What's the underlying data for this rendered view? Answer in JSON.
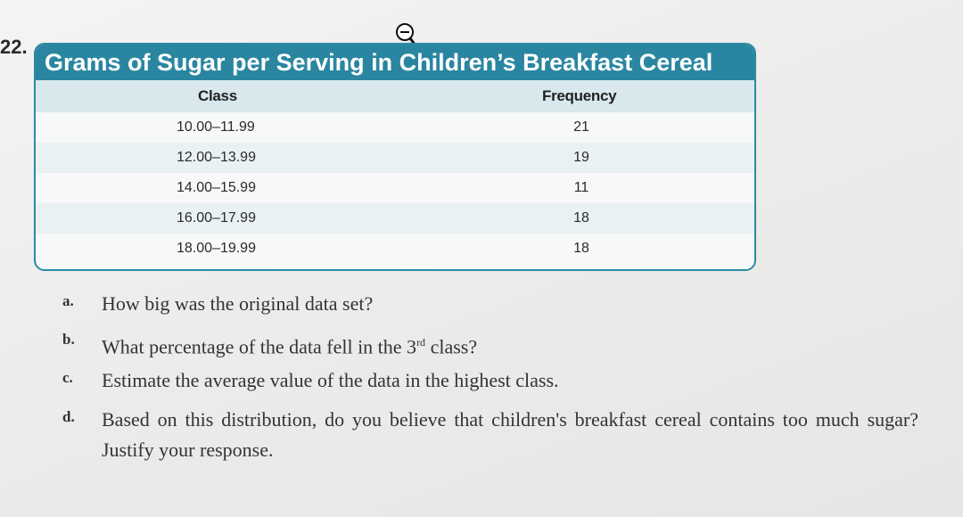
{
  "problem_number": "22.",
  "table": {
    "title": "Grams of Sugar per Serving in Children’s Breakfast Cereal",
    "headers": {
      "class": "Class",
      "frequency": "Frequency"
    },
    "rows": [
      {
        "class": "10.00–11.99",
        "frequency": "21"
      },
      {
        "class": "12.00–13.99",
        "frequency": "19"
      },
      {
        "class": "14.00–15.99",
        "frequency": "11"
      },
      {
        "class": "16.00–17.99",
        "frequency": "18"
      },
      {
        "class": "18.00–19.99",
        "frequency": "18"
      }
    ]
  },
  "chart_data": {
    "type": "table",
    "title": "Grams of Sugar per Serving in Children’s Breakfast Cereal",
    "columns": [
      "Class",
      "Frequency"
    ],
    "categories": [
      "10.00–11.99",
      "12.00–13.99",
      "14.00–15.99",
      "16.00–17.99",
      "18.00–19.99"
    ],
    "values": [
      21,
      19,
      11,
      18,
      18
    ]
  },
  "questions": [
    {
      "letter": "a.",
      "text": "How big was the original data set?"
    },
    {
      "letter": "b.",
      "text_before": "What percentage of the data fell in the 3",
      "sup": "rd",
      "text_after": " class?"
    },
    {
      "letter": "c.",
      "text": "Estimate the average value of the data in the highest class."
    },
    {
      "letter": "d.",
      "text": "Based on this distribution, do you believe that children's breakfast cereal contains too much sugar? Justify your response."
    }
  ],
  "colors": {
    "title_bar": "#2a86a0",
    "header_band": "#d8e8ec",
    "border": "#2b8aa3"
  },
  "icons": {
    "cursor": "zoom-out-magnifier-cursor-icon"
  }
}
